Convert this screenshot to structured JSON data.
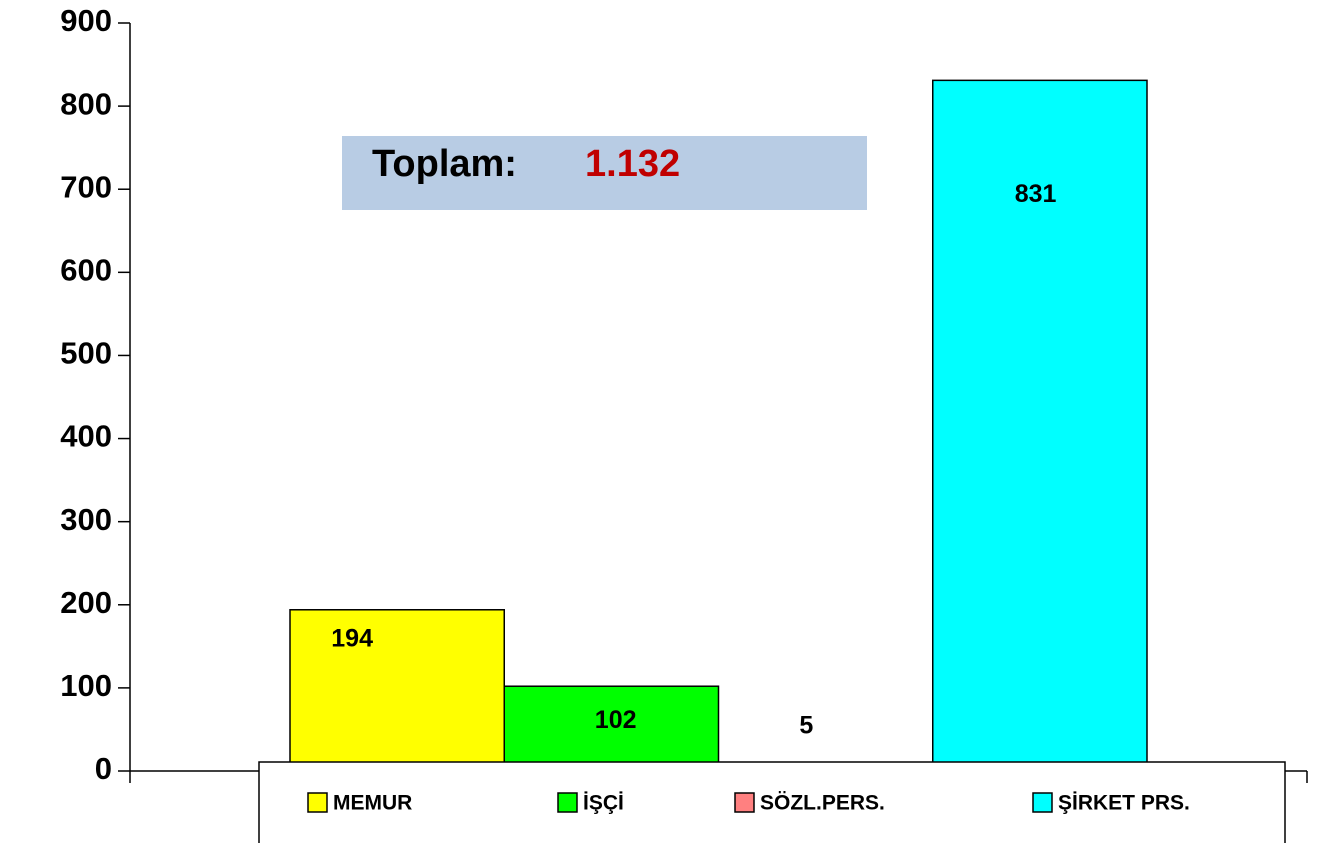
{
  "chart_data": {
    "type": "bar",
    "annotation": "Toplam:",
    "annotation_value": "1.132",
    "categories": [
      null
    ],
    "series": [
      {
        "name": "MEMUR",
        "color": "#ffff00",
        "values": [
          194
        ]
      },
      {
        "name": "İŞÇİ",
        "color": "#00ff00",
        "values": [
          102
        ]
      },
      {
        "name": "SÖZL.PERS.",
        "color": "#ff8080",
        "values": [
          5
        ]
      },
      {
        "name": "ŞİRKET PRS.",
        "color": "#00ffff",
        "values": [
          831
        ]
      }
    ],
    "ylim": [
      0,
      900
    ],
    "yticks": [
      0,
      100,
      200,
      300,
      400,
      500,
      600,
      700,
      800,
      900
    ],
    "grid": false
  }
}
